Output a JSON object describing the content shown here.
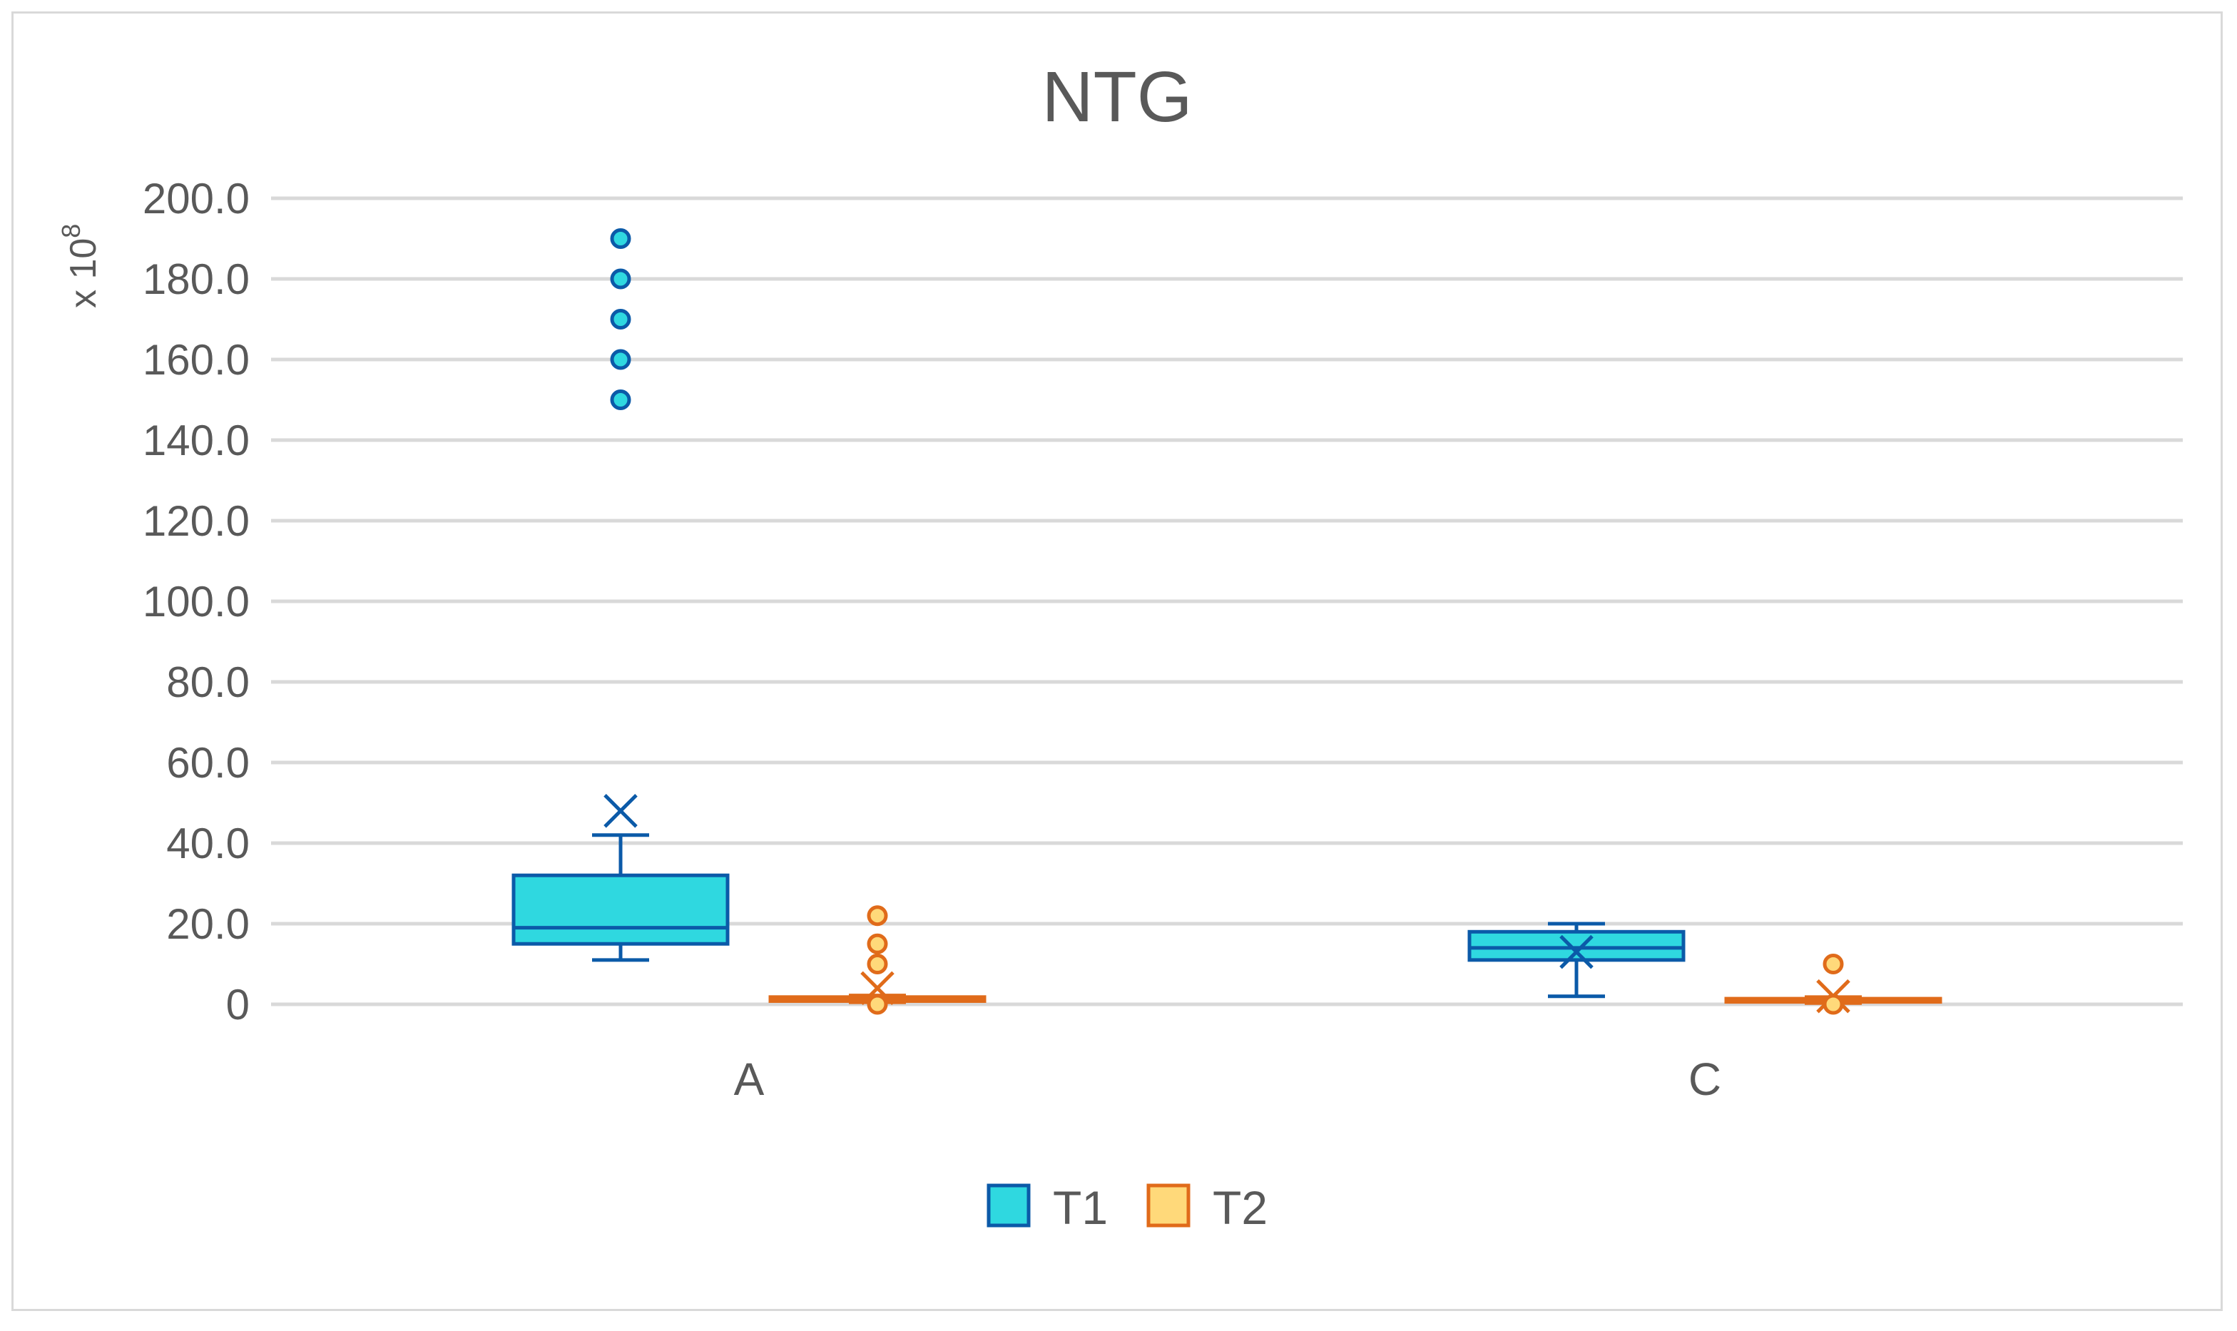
{
  "chart_data": {
    "type": "box",
    "title": "NTG",
    "ylabel": "",
    "y_unit": {
      "prefix": "x 10",
      "exponent": "8"
    },
    "ylim": [
      0,
      200
    ],
    "y_ticks": [
      {
        "value": 0,
        "label": "0"
      },
      {
        "value": 20,
        "label": "20.0"
      },
      {
        "value": 40,
        "label": "40.0"
      },
      {
        "value": 60,
        "label": "60.0"
      },
      {
        "value": 80,
        "label": "80.0"
      },
      {
        "value": 100,
        "label": "100.0"
      },
      {
        "value": 120,
        "label": "120.0"
      },
      {
        "value": 140,
        "label": "140.0"
      },
      {
        "value": 160,
        "label": "160.0"
      },
      {
        "value": 180,
        "label": "180.0"
      },
      {
        "value": 200,
        "label": "200.0"
      }
    ],
    "grid": true,
    "legend_position": "bottom",
    "categories": [
      "A",
      "C"
    ],
    "series": [
      {
        "name": "T1",
        "fill": "#2fd8e0",
        "stroke": "#0b5aa8",
        "boxes": [
          {
            "category": "A",
            "min": 11,
            "q1": 15,
            "median": 19,
            "q3": 32,
            "max": 42,
            "mean": 48,
            "outliers": [
              150,
              160,
              170,
              180,
              190
            ]
          },
          {
            "category": "C",
            "min": 2,
            "q1": 11,
            "median": 14,
            "q3": 18,
            "max": 20,
            "mean": 13,
            "outliers": []
          }
        ]
      },
      {
        "name": "T2",
        "fill": "#ffd97a",
        "stroke": "#e06b1a",
        "boxes": [
          {
            "category": "A",
            "min": 0.5,
            "q1": 0.8,
            "median": 1.2,
            "q3": 1.8,
            "max": 2.2,
            "mean": 4,
            "outliers": [
              0,
              10,
              15,
              22
            ]
          },
          {
            "category": "C",
            "min": 0.3,
            "q1": 0.6,
            "median": 1.0,
            "q3": 1.4,
            "max": 1.8,
            "mean": 2,
            "outliers": [
              0,
              10
            ]
          }
        ]
      }
    ]
  }
}
